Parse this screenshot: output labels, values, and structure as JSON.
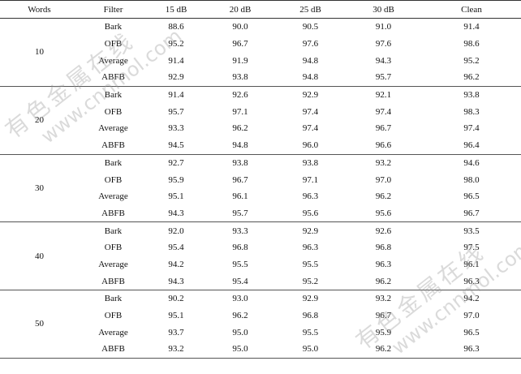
{
  "table": {
    "header": [
      "Words",
      "Filter",
      "15 dB",
      "20 dB",
      "25 dB",
      "30 dB",
      "Clean"
    ],
    "groups": [
      {
        "words": "10",
        "rows": [
          [
            "Bark",
            "88.6",
            "90.0",
            "90.5",
            "91.0",
            "91.4"
          ],
          [
            "OFB",
            "95.2",
            "96.7",
            "97.6",
            "97.6",
            "98.6"
          ],
          [
            "Average",
            "91.4",
            "91.9",
            "94.8",
            "94.3",
            "95.2"
          ],
          [
            "ABFB",
            "92.9",
            "93.8",
            "94.8",
            "95.7",
            "96.2"
          ]
        ]
      },
      {
        "words": "20",
        "rows": [
          [
            "Bark",
            "91.4",
            "92.6",
            "92.9",
            "92.1",
            "93.8"
          ],
          [
            "OFB",
            "95.7",
            "97.1",
            "97.4",
            "97.4",
            "98.3"
          ],
          [
            "Average",
            "93.3",
            "96.2",
            "97.4",
            "96.7",
            "97.4"
          ],
          [
            "ABFB",
            "94.5",
            "94.8",
            "96.0",
            "96.6",
            "96.4"
          ]
        ]
      },
      {
        "words": "30",
        "rows": [
          [
            "Bark",
            "92.7",
            "93.8",
            "93.8",
            "93.2",
            "94.6"
          ],
          [
            "OFB",
            "95.9",
            "96.7",
            "97.1",
            "97.0",
            "98.0"
          ],
          [
            "Average",
            "95.1",
            "96.1",
            "96.3",
            "96.2",
            "96.5"
          ],
          [
            "ABFB",
            "94.3",
            "95.7",
            "95.6",
            "95.6",
            "96.7"
          ]
        ]
      },
      {
        "words": "40",
        "rows": [
          [
            "Bark",
            "92.0",
            "93.3",
            "92.9",
            "92.6",
            "93.5"
          ],
          [
            "OFB",
            "95.4",
            "96.8",
            "96.3",
            "96.8",
            "97.5"
          ],
          [
            "Average",
            "94.2",
            "95.5",
            "95.5",
            "96.3",
            "96.1"
          ],
          [
            "ABFB",
            "94.3",
            "95.4",
            "95.2",
            "96.2",
            "96.3"
          ]
        ]
      },
      {
        "words": "50",
        "rows": [
          [
            "Bark",
            "90.2",
            "93.0",
            "92.9",
            "93.2",
            "94.2"
          ],
          [
            "OFB",
            "95.1",
            "96.2",
            "96.8",
            "96.7",
            "97.0"
          ],
          [
            "Average",
            "93.7",
            "95.0",
            "95.5",
            "95.9",
            "96.5"
          ],
          [
            "ABFB",
            "93.2",
            "95.0",
            "95.0",
            "96.2",
            "96.3"
          ]
        ]
      }
    ]
  },
  "watermark": {
    "name": "有色金属在线",
    "url": "www.cnnmol.com"
  }
}
